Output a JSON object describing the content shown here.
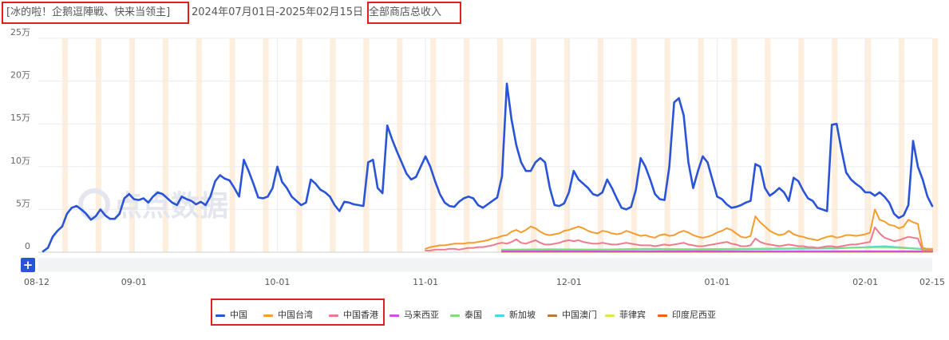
{
  "header": {
    "title_part1": "[冰的啦！企鹅逗陣戦、快来当领主]",
    "title_part2": "2024年07月01日-2025年02月15日",
    "title_part3": "全部商店总收入"
  },
  "watermark": "点点数据",
  "colors": {
    "中国": "#2a54d8",
    "中国台湾": "#f59d2c",
    "中国香港": "#f0798d",
    "马来西亚": "#d34de0",
    "泰国": "#7fdc7f",
    "新加坡": "#48d6e0",
    "中国澳门": "#b47d3c",
    "菲律宾": "#dfe84a",
    "印度尼西亚": "#f06010",
    "highlight_box": "#e0201f",
    "weekend_band": "#fdeede"
  },
  "chart_data": {
    "type": "line",
    "title": "",
    "xlabel": "",
    "ylabel": "",
    "y_unit": "万",
    "ylim": [
      0,
      25
    ],
    "y_ticks": [
      "0",
      "5万",
      "10万",
      "15万",
      "20万",
      "25万"
    ],
    "x_ticks": [
      "08-12",
      "09-01",
      "10-01",
      "11-01",
      "12-01",
      "01-01",
      "02-01",
      "02-15"
    ],
    "grid": true,
    "legend_position": "bottom",
    "start_date": "2024-08-12",
    "end_date": "2025-02-15",
    "series": [
      {
        "name": "中国",
        "values": [
          0.1,
          0.5,
          1.8,
          2.5,
          3.0,
          4.5,
          5.2,
          5.4,
          5.0,
          4.5,
          3.8,
          4.2,
          5.0,
          4.3,
          3.9,
          3.9,
          4.5,
          6.3,
          6.8,
          6.2,
          6.1,
          6.3,
          5.8,
          6.5,
          7.0,
          6.8,
          6.3,
          5.8,
          5.5,
          6.5,
          6.2,
          6.0,
          5.6,
          5.9,
          5.5,
          6.5,
          8.3,
          9.0,
          8.6,
          8.4,
          7.5,
          6.5,
          10.8,
          9.5,
          8.0,
          6.4,
          6.3,
          6.5,
          7.5,
          10.0,
          8.2,
          7.5,
          6.5,
          6.0,
          5.5,
          5.8,
          8.5,
          8.0,
          7.3,
          7.0,
          6.5,
          5.5,
          4.8,
          5.9,
          5.8,
          5.6,
          5.5,
          5.4,
          10.5,
          10.8,
          7.5,
          6.9,
          14.8,
          13.2,
          11.8,
          10.5,
          9.2,
          8.5,
          8.8,
          10.0,
          11.2,
          10.0,
          8.3,
          6.8,
          5.8,
          5.4,
          5.3,
          5.9,
          6.3,
          6.5,
          6.3,
          5.5,
          5.2,
          5.6,
          6.0,
          6.4,
          8.9,
          19.7,
          15.5,
          12.5,
          10.5,
          9.5,
          9.5,
          10.5,
          11.0,
          10.5,
          7.5,
          5.5,
          5.4,
          5.7,
          7.0,
          9.5,
          8.5,
          8.0,
          7.5,
          6.8,
          6.6,
          7.0,
          8.5,
          7.5,
          6.3,
          5.2,
          5.0,
          5.3,
          7.3,
          11.0,
          10.0,
          8.5,
          6.8,
          6.2,
          6.1,
          10.0,
          17.5,
          18.0,
          16.0,
          10.5,
          7.5,
          9.5,
          11.2,
          10.5,
          8.5,
          6.5,
          6.2,
          5.6,
          5.2,
          5.3,
          5.5,
          5.8,
          6.0,
          10.3,
          10.0,
          7.5,
          6.6,
          7.0,
          7.5,
          7.0,
          6.0,
          8.7,
          8.3,
          7.2,
          6.3,
          6.0,
          5.2,
          5.0,
          4.8,
          14.9,
          15.0,
          12.0,
          9.3,
          8.5,
          8.0,
          7.6,
          7.0,
          7.0,
          6.6,
          7.0,
          6.5,
          5.8,
          4.5,
          4.0,
          4.3,
          5.5,
          13.0,
          10.0,
          8.5,
          6.5,
          5.4
        ]
      },
      {
        "name": "中国台湾",
        "values": [
          0.4,
          0.6,
          0.7,
          0.8,
          0.8,
          0.9,
          1.0,
          1.0,
          1.0,
          1.1,
          1.1,
          1.2,
          1.3,
          1.4,
          1.6,
          1.7,
          1.9,
          2.0,
          2.4,
          2.6,
          2.3,
          2.6,
          3.0,
          2.8,
          2.4,
          2.1,
          2.0,
          2.1,
          2.2,
          2.5,
          2.6,
          2.8,
          3.0,
          2.8,
          2.5,
          2.3,
          2.2,
          2.5,
          2.4,
          2.2,
          2.1,
          2.2,
          2.5,
          2.3,
          2.1,
          1.9,
          2.0,
          1.8,
          1.7,
          2.0,
          2.1,
          1.9,
          2.0,
          2.3,
          2.5,
          2.3,
          2.0,
          1.8,
          1.7,
          1.8,
          2.0,
          2.3,
          2.5,
          2.8,
          2.6,
          2.2,
          1.8,
          1.7,
          1.9,
          4.2,
          3.5,
          3.0,
          2.5,
          2.2,
          2.0,
          2.1,
          2.5,
          2.1,
          1.9,
          1.8,
          1.6,
          1.5,
          1.4,
          1.6,
          1.8,
          1.9,
          1.7,
          1.8,
          2.0,
          2.0,
          1.9,
          2.0,
          2.1,
          2.3,
          5.0,
          3.8,
          3.6,
          3.2,
          3.1,
          2.8,
          3.0,
          3.8,
          3.5,
          3.3,
          0.5,
          0.4,
          0.4
        ]
      },
      {
        "name": "中国香港",
        "values": [
          0.2,
          0.2,
          0.3,
          0.3,
          0.3,
          0.4,
          0.4,
          0.3,
          0.4,
          0.5,
          0.5,
          0.6,
          0.6,
          0.7,
          0.8,
          1.0,
          1.1,
          1.0,
          1.2,
          1.5,
          1.1,
          1.0,
          1.2,
          1.4,
          1.1,
          0.9,
          0.9,
          1.0,
          1.1,
          1.3,
          1.4,
          1.3,
          1.4,
          1.2,
          1.1,
          1.0,
          1.0,
          1.1,
          1.0,
          0.9,
          0.9,
          1.0,
          1.1,
          1.0,
          0.9,
          0.8,
          0.8,
          0.8,
          0.7,
          0.8,
          0.9,
          0.8,
          0.9,
          1.0,
          1.1,
          0.9,
          0.8,
          0.7,
          0.7,
          0.8,
          0.9,
          1.0,
          1.1,
          1.2,
          1.0,
          0.9,
          0.7,
          0.7,
          0.8,
          1.6,
          1.2,
          1.0,
          0.9,
          0.8,
          0.7,
          0.8,
          0.9,
          0.8,
          0.7,
          0.7,
          0.6,
          0.6,
          0.5,
          0.6,
          0.7,
          0.7,
          0.6,
          0.7,
          0.8,
          0.9,
          0.9,
          1.0,
          1.1,
          1.2,
          2.9,
          2.2,
          1.7,
          1.5,
          1.3,
          1.4,
          1.6,
          1.8,
          1.7,
          1.6,
          0.2,
          0.2,
          0.2
        ]
      },
      {
        "name": "马来西亚",
        "values": [
          0.1,
          0.1,
          0.1,
          0.1,
          0.1,
          0.1,
          0.1,
          0.1,
          0.1,
          0.1
        ]
      },
      {
        "name": "泰国",
        "values": [
          0.3,
          0.35,
          0.3,
          0.4,
          0.35,
          0.4,
          0.45,
          0.5,
          0.6,
          0.3
        ]
      },
      {
        "name": "新加坡",
        "values": [
          0.2,
          0.25,
          0.3,
          0.35,
          0.3,
          0.35,
          0.4,
          0.45,
          0.7,
          0.3
        ]
      },
      {
        "name": "中国澳门",
        "values": [
          0.05,
          0.05,
          0.05,
          0.05,
          0.05,
          0.05,
          0.05,
          0.05,
          0.05,
          0.05
        ]
      },
      {
        "name": "菲律宾",
        "values": [
          0.05,
          0.05,
          0.05,
          0.05,
          0.05,
          0.05,
          0.05,
          0.05,
          0.05,
          0.05
        ]
      },
      {
        "name": "印度尼西亚",
        "values": [
          0.1,
          0.1,
          0.1,
          0.1,
          0.1,
          0.1,
          0.1,
          0.1,
          0.1,
          0.1
        ]
      }
    ]
  },
  "controls": {
    "expand_label": "+"
  },
  "legend": [
    "中国",
    "中国台湾",
    "中国香港",
    "马来西亚",
    "泰国",
    "新加坡",
    "中国澳门",
    "菲律宾",
    "印度尼西亚"
  ]
}
